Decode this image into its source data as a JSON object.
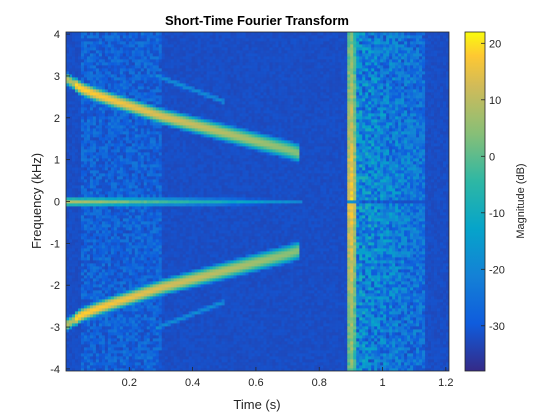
{
  "chart_data": {
    "type": "heatmap",
    "title": "Short-Time Fourier Transform",
    "xlabel": "Time (s)",
    "ylabel": "Frequency (kHz)",
    "xlim": [
      0,
      1.21
    ],
    "ylim": [
      -4.05,
      4.05
    ],
    "x_ticks": [
      0.2,
      0.4,
      0.6,
      0.8,
      1.0,
      1.2
    ],
    "x_tick_labels": [
      "0.2",
      "0.4",
      "0.6",
      "0.8",
      "1",
      "1.2"
    ],
    "y_ticks": [
      -4,
      -3,
      -2,
      -1,
      0,
      1,
      2,
      3,
      4
    ],
    "y_tick_labels": [
      "-4",
      "-3",
      "-2",
      "-1",
      "0",
      "1",
      "2",
      "3",
      "4"
    ],
    "colorbar": {
      "label": "Magnitude (dB)",
      "range": [
        -38,
        22
      ],
      "ticks": [
        -30,
        -20,
        -10,
        0,
        10,
        20
      ],
      "tick_labels": [
        "-30",
        "-20",
        "-10",
        "0",
        "10",
        "20"
      ],
      "colormap": "parula"
    },
    "features": [
      {
        "kind": "chirp",
        "t": [
          0.0,
          0.05,
          0.1,
          0.15,
          0.2,
          0.3,
          0.4,
          0.5,
          0.6,
          0.7,
          0.74
        ],
        "f_khz": [
          2.95,
          2.7,
          2.55,
          2.42,
          2.3,
          2.05,
          1.85,
          1.65,
          1.45,
          1.25,
          1.15
        ],
        "peak_db": 20
      },
      {
        "kind": "chirp",
        "t": [
          0.0,
          0.05,
          0.1,
          0.15,
          0.2,
          0.3,
          0.4,
          0.5,
          0.6,
          0.7,
          0.74
        ],
        "f_khz": [
          -2.95,
          -2.7,
          -2.55,
          -2.42,
          -2.3,
          -2.05,
          -1.85,
          -1.65,
          -1.45,
          -1.25,
          -1.15
        ],
        "peak_db": 20
      },
      {
        "kind": "tone",
        "f_khz": 0.0,
        "t_start": 0.0,
        "t_end": 0.75,
        "peak_db": 8
      },
      {
        "kind": "impulse",
        "t": 0.9,
        "peak_db": 15
      },
      {
        "kind": "noise_burst",
        "t_start": 0.9,
        "t_end": 1.13,
        "peak_db": -5
      },
      {
        "kind": "noise_band",
        "t_start": 0.05,
        "t_end": 0.3,
        "peak_db": -22
      }
    ]
  }
}
